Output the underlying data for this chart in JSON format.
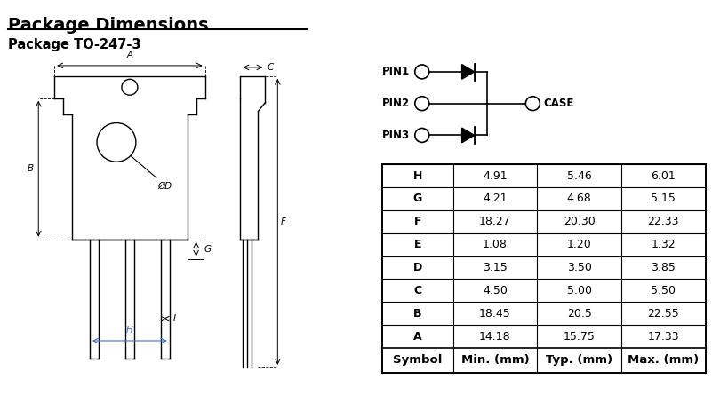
{
  "title": "Package Dimensions",
  "subtitle": "Package TO-247-3",
  "bg_color": "#ffffff",
  "table_headers": [
    "Symbol",
    "Min. (mm)",
    "Typ. (mm)",
    "Max. (mm)"
  ],
  "table_rows": [
    [
      "A",
      "14.18",
      "15.75",
      "17.33"
    ],
    [
      "B",
      "18.45",
      "20.5",
      "22.55"
    ],
    [
      "C",
      "4.50",
      "5.00",
      "5.50"
    ],
    [
      "D",
      "3.15",
      "3.50",
      "3.85"
    ],
    [
      "E",
      "1.08",
      "1.20",
      "1.32"
    ],
    [
      "F",
      "18.27",
      "20.30",
      "22.33"
    ],
    [
      "G",
      "4.21",
      "4.68",
      "5.15"
    ],
    [
      "H",
      "4.91",
      "5.46",
      "6.01"
    ]
  ],
  "line_color": "#000000",
  "text_color": "#000000",
  "dim_color": "#4472C4",
  "title_fontsize": 14,
  "subtitle_fontsize": 10.5,
  "table_fontsize": 9,
  "header_fontsize": 9.5,
  "pin_label_fontsize": 8.5,
  "dim_label_fontsize": 7.5
}
